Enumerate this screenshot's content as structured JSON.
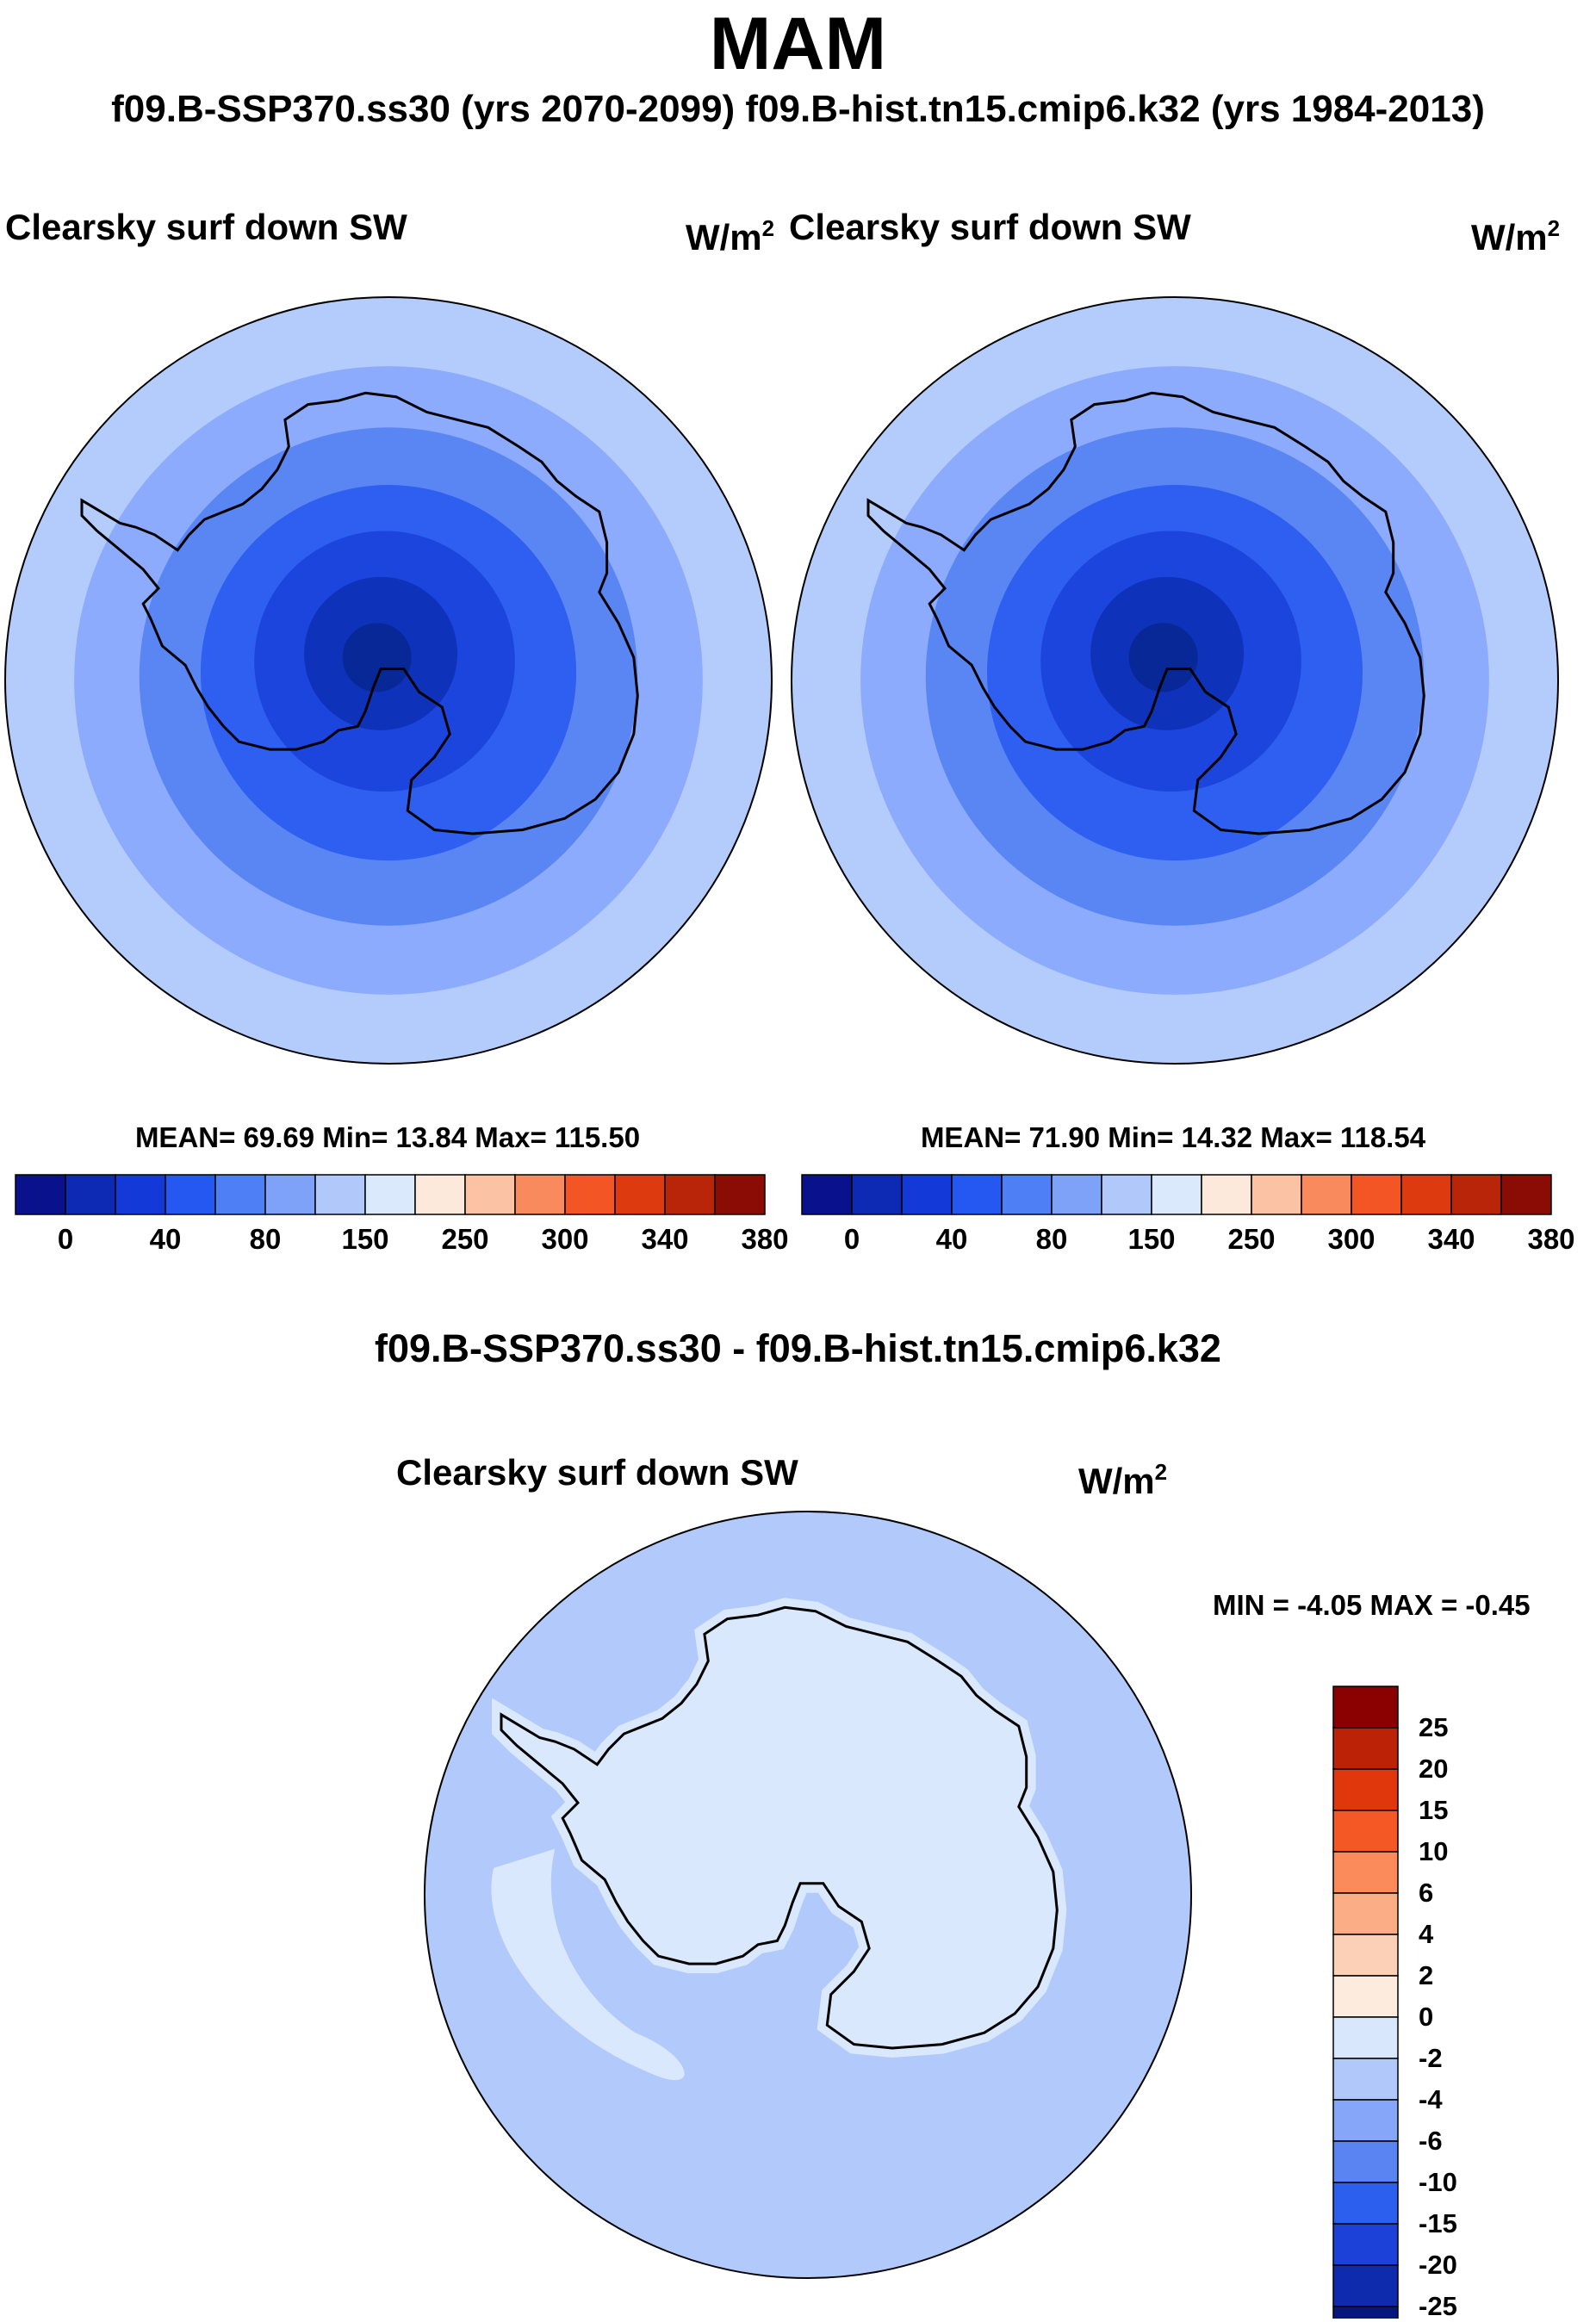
{
  "header": {
    "title": "MAM",
    "subtitle": "f09.B-SSP370.ss30 (yrs 2070-2099)  f09.B-hist.tn15.cmip6.k32 (yrs 1984-2013)"
  },
  "panels": [
    {
      "variable": "Clearsky surf down SW",
      "units_base": "W/m",
      "units_exp": "2",
      "stats": "MEAN=  69.69  Min=  13.84  Max= 115.50",
      "ring_colors": [
        "#b4ccfc",
        "#8cabfc",
        "#5a86f4",
        "#2e5ff0",
        "#1b45dc",
        "#0f32bb",
        "#092897"
      ],
      "colorbar": {
        "colors": [
          "#09118c",
          "#0d2ab4",
          "#133ad8",
          "#2458f0",
          "#4f7ff5",
          "#7ea2f8",
          "#b1c8fb",
          "#dbe9fc",
          "#fde9db",
          "#fbc3a4",
          "#f98a5d",
          "#f35524",
          "#dd3a0f",
          "#b92508",
          "#8b0b05"
        ],
        "labels": [
          "0",
          "40",
          "80",
          "150",
          "250",
          "300",
          "340",
          "380"
        ]
      }
    },
    {
      "variable": "Clearsky surf down SW",
      "units_base": "W/m",
      "units_exp": "2",
      "stats": "MEAN=  71.90  Min=  14.32  Max= 118.54",
      "ring_colors": [
        "#b4ccfc",
        "#8cabfc",
        "#5a86f4",
        "#2e5ff0",
        "#1b45dc",
        "#0f32bb",
        "#092897"
      ],
      "colorbar": {
        "colors": [
          "#09118c",
          "#0d2ab4",
          "#133ad8",
          "#2458f0",
          "#4f7ff5",
          "#7ea2f8",
          "#b1c8fb",
          "#dbe9fc",
          "#fde9db",
          "#fbc3a4",
          "#f98a5d",
          "#f35524",
          "#dd3a0f",
          "#b92508",
          "#8b0b05"
        ],
        "labels": [
          "0",
          "40",
          "80",
          "150",
          "250",
          "300",
          "340",
          "380"
        ]
      }
    }
  ],
  "difference": {
    "title": "f09.B-SSP370.ss30 - f09.B-hist.tn15.cmip6.k32",
    "variable": "Clearsky surf down SW",
    "units_base": "W/m",
    "units_exp": "2",
    "stats": "MIN =  -4.05 MAX =  -0.45",
    "field_colors": {
      "ocean": "#b1c9fb",
      "continent": "#d9e8fc"
    },
    "colorbar": {
      "colors": [
        "#8b0000",
        "#bb2206",
        "#e0370c",
        "#f45824",
        "#fb8b5a",
        "#fbae86",
        "#fcd0b7",
        "#fdebdd",
        "#d8e7fc",
        "#b1c8fb",
        "#86a6f9",
        "#5a84f2",
        "#2d5fee",
        "#1b41d8",
        "#0d2bac",
        "#07157f"
      ],
      "labels": [
        "25",
        "20",
        "15",
        "10",
        "6",
        "4",
        "2",
        "0",
        "-2",
        "-4",
        "-6",
        "-10",
        "-15",
        "-20",
        "-25"
      ]
    }
  }
}
